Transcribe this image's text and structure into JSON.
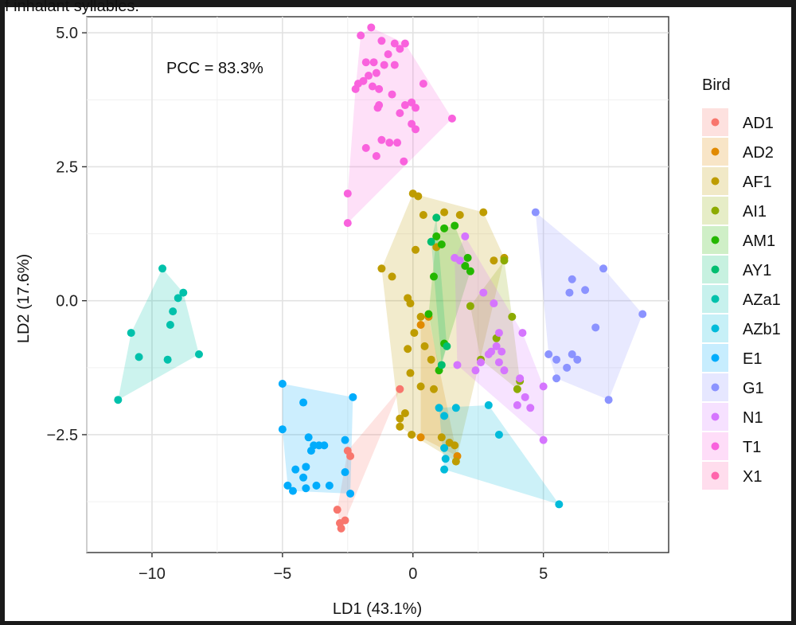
{
  "caption_fragment": "f inhalant syllables.",
  "chart_data": {
    "type": "scatter",
    "xlabel": "LD1 (43.1%)",
    "ylabel": "LD2 (17.6%)",
    "xlim": [
      -12.5,
      9.8
    ],
    "ylim": [
      -4.7,
      5.3
    ],
    "x_ticks": [
      -10,
      -5,
      0,
      5
    ],
    "x_tick_labels": [
      "−10",
      "−5",
      "0",
      "5"
    ],
    "y_ticks": [
      -2.5,
      0,
      2.5,
      5
    ],
    "y_tick_labels": [
      "−2.5",
      "0.0",
      "2.5",
      "5.0"
    ],
    "grid": true,
    "annotation": "PCC = 83.3%",
    "legend_title": "Bird",
    "legend_position": "right",
    "series": [
      {
        "name": "AD1",
        "color": "#F8766D",
        "points": [
          [
            -0.5,
            -1.65
          ],
          [
            -2.5,
            -2.8
          ],
          [
            -2.4,
            -2.9
          ],
          [
            -2.8,
            -4.15
          ],
          [
            -2.6,
            -4.1
          ],
          [
            -2.9,
            -3.9
          ],
          [
            -2.75,
            -4.25
          ]
        ]
      },
      {
        "name": "AD2",
        "color": "#E18A00",
        "points": [
          [
            0.3,
            -2.55
          ],
          [
            1.7,
            -2.9
          ],
          [
            0.3,
            -0.45
          ],
          [
            0.6,
            -0.3
          ]
        ]
      },
      {
        "name": "AF1",
        "color": "#BE9C00",
        "points": [
          [
            0,
            2.0
          ],
          [
            0.2,
            1.95
          ],
          [
            0.4,
            1.6
          ],
          [
            1.2,
            1.65
          ],
          [
            1.8,
            1.6
          ],
          [
            2.7,
            1.65
          ],
          [
            0.9,
            1.0
          ],
          [
            0.1,
            0.95
          ],
          [
            -1.2,
            0.6
          ],
          [
            -0.8,
            0.45
          ],
          [
            -0.2,
            0.05
          ],
          [
            -0.1,
            -0.05
          ],
          [
            0.3,
            -0.3
          ],
          [
            0.05,
            -0.6
          ],
          [
            -0.2,
            -0.9
          ],
          [
            0.45,
            -0.85
          ],
          [
            0.7,
            -1.1
          ],
          [
            -0.1,
            -1.35
          ],
          [
            0.3,
            -1.6
          ],
          [
            0.8,
            -1.65
          ],
          [
            -0.3,
            -2.1
          ],
          [
            -0.5,
            -2.2
          ],
          [
            -0.5,
            -2.35
          ],
          [
            -0.05,
            -2.5
          ],
          [
            1.1,
            -2.55
          ],
          [
            1.4,
            -2.65
          ],
          [
            1.6,
            -2.7
          ],
          [
            1.65,
            -3.0
          ],
          [
            3.1,
            0.75
          ],
          [
            3.5,
            0.8
          ]
        ]
      },
      {
        "name": "AI1",
        "color": "#8CAB00",
        "points": [
          [
            3.5,
            0.75
          ],
          [
            3.8,
            -0.3
          ],
          [
            2.2,
            -0.1
          ],
          [
            3.2,
            -0.7
          ],
          [
            2.6,
            -1.1
          ],
          [
            4.1,
            -1.5
          ],
          [
            4.0,
            -1.65
          ]
        ]
      },
      {
        "name": "AM1",
        "color": "#24B700",
        "points": [
          [
            1.2,
            1.35
          ],
          [
            1.6,
            1.4
          ],
          [
            0.9,
            1.2
          ],
          [
            1.1,
            1.05
          ],
          [
            2.1,
            0.8
          ],
          [
            2.0,
            0.65
          ],
          [
            2.2,
            0.55
          ],
          [
            0.8,
            0.45
          ],
          [
            0.6,
            -0.25
          ],
          [
            1.2,
            -0.8
          ],
          [
            1.0,
            -1.3
          ]
        ]
      },
      {
        "name": "AY1",
        "color": "#00BE70",
        "points": [
          [
            0.9,
            1.55
          ],
          [
            0.7,
            1.1
          ],
          [
            1.1,
            -1.2
          ],
          [
            1.3,
            -0.85
          ]
        ]
      },
      {
        "name": "AZa1",
        "color": "#00C1AB",
        "points": [
          [
            -9.6,
            0.6
          ],
          [
            -8.8,
            0.15
          ],
          [
            -9.0,
            0.05
          ],
          [
            -9.2,
            -0.2
          ],
          [
            -9.3,
            -0.45
          ],
          [
            -10.8,
            -0.6
          ],
          [
            -10.5,
            -1.05
          ],
          [
            -9.4,
            -1.1
          ],
          [
            -8.2,
            -1.0
          ],
          [
            -11.3,
            -1.85
          ]
        ]
      },
      {
        "name": "AZb1",
        "color": "#00BBDA",
        "points": [
          [
            1.0,
            -2.0
          ],
          [
            1.2,
            -2.15
          ],
          [
            1.65,
            -2.0
          ],
          [
            2.9,
            -1.95
          ],
          [
            1.2,
            -2.75
          ],
          [
            1.25,
            -2.95
          ],
          [
            1.2,
            -3.15
          ],
          [
            3.3,
            -2.5
          ],
          [
            5.6,
            -3.8
          ]
        ]
      },
      {
        "name": "E1",
        "color": "#00ACFC",
        "points": [
          [
            -5.0,
            -1.55
          ],
          [
            -4.2,
            -1.9
          ],
          [
            -2.3,
            -1.8
          ],
          [
            -5.0,
            -2.4
          ],
          [
            -4.0,
            -2.55
          ],
          [
            -3.8,
            -2.7
          ],
          [
            -3.6,
            -2.7
          ],
          [
            -3.4,
            -2.7
          ],
          [
            -3.9,
            -2.8
          ],
          [
            -2.6,
            -2.6
          ],
          [
            -4.1,
            -3.1
          ],
          [
            -4.5,
            -3.15
          ],
          [
            -4.2,
            -3.3
          ],
          [
            -2.6,
            -3.2
          ],
          [
            -4.8,
            -3.45
          ],
          [
            -4.6,
            -3.55
          ],
          [
            -4.1,
            -3.5
          ],
          [
            -3.7,
            -3.45
          ],
          [
            -3.2,
            -3.45
          ],
          [
            -2.4,
            -3.6
          ]
        ]
      },
      {
        "name": "G1",
        "color": "#8B93FF",
        "points": [
          [
            4.7,
            1.65
          ],
          [
            7.3,
            0.6
          ],
          [
            6.1,
            0.4
          ],
          [
            6.6,
            0.2
          ],
          [
            6.0,
            0.15
          ],
          [
            8.8,
            -0.25
          ],
          [
            7.0,
            -0.5
          ],
          [
            5.2,
            -1.0
          ],
          [
            5.5,
            -1.1
          ],
          [
            6.1,
            -1.0
          ],
          [
            6.3,
            -1.1
          ],
          [
            5.9,
            -1.25
          ],
          [
            5.5,
            -1.45
          ],
          [
            7.5,
            -1.85
          ]
        ]
      },
      {
        "name": "N1",
        "color": "#D575FE",
        "points": [
          [
            2.0,
            1.2
          ],
          [
            1.8,
            0.75
          ],
          [
            2.7,
            0.15
          ],
          [
            3.1,
            -0.05
          ],
          [
            3.3,
            -0.6
          ],
          [
            4.2,
            -0.6
          ],
          [
            3.2,
            -0.85
          ],
          [
            3.0,
            -0.95
          ],
          [
            3.4,
            -0.95
          ],
          [
            2.9,
            -1.0
          ],
          [
            2.6,
            -1.15
          ],
          [
            3.3,
            -1.15
          ],
          [
            2.4,
            -1.3
          ],
          [
            3.5,
            -1.3
          ],
          [
            4.1,
            -1.45
          ],
          [
            4.3,
            -1.8
          ],
          [
            5.0,
            -1.6
          ],
          [
            4.0,
            -1.95
          ],
          [
            4.5,
            -2.0
          ],
          [
            5.0,
            -2.6
          ],
          [
            1.7,
            -1.2
          ],
          [
            1.6,
            0.8
          ]
        ]
      },
      {
        "name": "T1",
        "color": "#F962DD",
        "points": [
          [
            -1.6,
            5.1
          ],
          [
            -2.0,
            4.95
          ],
          [
            -1.2,
            4.85
          ],
          [
            -0.7,
            4.8
          ],
          [
            -0.3,
            4.8
          ],
          [
            -0.5,
            4.7
          ],
          [
            -0.95,
            4.6
          ],
          [
            -1.8,
            4.45
          ],
          [
            -1.5,
            4.45
          ],
          [
            -1.1,
            4.4
          ],
          [
            -0.7,
            4.4
          ],
          [
            -1.4,
            4.25
          ],
          [
            -1.7,
            4.2
          ],
          [
            -1.9,
            4.1
          ],
          [
            -1.55,
            4.0
          ],
          [
            -2.2,
            3.95
          ],
          [
            -2.1,
            4.05
          ],
          [
            0.4,
            4.05
          ],
          [
            -1.3,
            3.95
          ],
          [
            -0.8,
            3.85
          ],
          [
            -1.3,
            3.65
          ],
          [
            -1.35,
            3.6
          ],
          [
            -0.3,
            3.65
          ],
          [
            -0.5,
            3.5
          ],
          [
            -0.05,
            3.7
          ],
          [
            0.1,
            3.6
          ],
          [
            -0.05,
            3.3
          ],
          [
            1.5,
            3.4
          ],
          [
            0.1,
            3.2
          ],
          [
            -1.2,
            3.0
          ],
          [
            -0.9,
            2.95
          ],
          [
            -0.6,
            2.95
          ],
          [
            -1.8,
            2.85
          ],
          [
            -1.4,
            2.7
          ],
          [
            -0.35,
            2.6
          ],
          [
            -2.5,
            2.0
          ],
          [
            -2.5,
            1.45
          ]
        ]
      },
      {
        "name": "X1",
        "color": "#FF65AC",
        "points": []
      }
    ]
  }
}
